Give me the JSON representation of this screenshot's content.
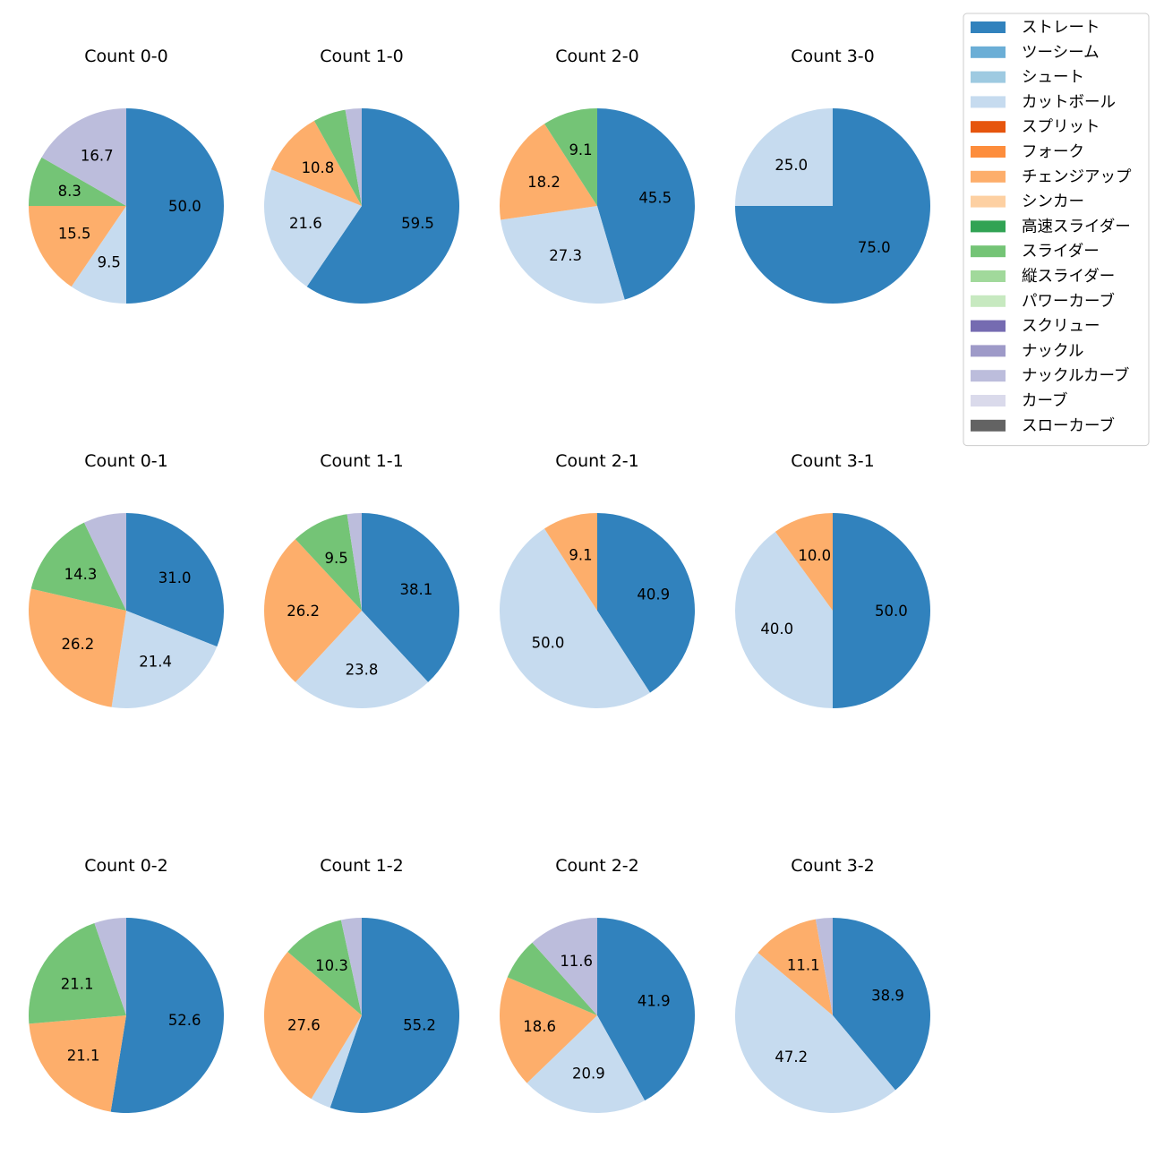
{
  "chart_data": {
    "type": "pie",
    "legend": {
      "placement": "top-right",
      "entries": [
        {
          "label": "ストレート",
          "color": "#3182bd"
        },
        {
          "label": "ツーシーム",
          "color": "#6baed6"
        },
        {
          "label": "シュート",
          "color": "#9ecae1"
        },
        {
          "label": "カットボール",
          "color": "#c6dbef"
        },
        {
          "label": "スプリット",
          "color": "#e6550d"
        },
        {
          "label": "フォーク",
          "color": "#fd8d3c"
        },
        {
          "label": "チェンジアップ",
          "color": "#fdae6b"
        },
        {
          "label": "シンカー",
          "color": "#fdd0a2"
        },
        {
          "label": "高速スライダー",
          "color": "#31a354"
        },
        {
          "label": "スライダー",
          "color": "#74c476"
        },
        {
          "label": "縦スライダー",
          "color": "#a1d99b"
        },
        {
          "label": "パワーカーブ",
          "color": "#c7e9c0"
        },
        {
          "label": "スクリュー",
          "color": "#756bb1"
        },
        {
          "label": "ナックル",
          "color": "#9e9ac8"
        },
        {
          "label": "ナックルカーブ",
          "color": "#bcbddc"
        },
        {
          "label": "カーブ",
          "color": "#dadaeb"
        },
        {
          "label": "スローカーブ",
          "color": "#636363"
        }
      ]
    },
    "label_threshold": 8,
    "pies": [
      {
        "title": "Count 0-0",
        "slices": [
          {
            "label": "ストレート",
            "value": 50.0
          },
          {
            "label": "カットボール",
            "value": 9.5
          },
          {
            "label": "チェンジアップ",
            "value": 15.5
          },
          {
            "label": "スライダー",
            "value": 8.3
          },
          {
            "label": "ナックルカーブ",
            "value": 16.7
          }
        ]
      },
      {
        "title": "Count 1-0",
        "slices": [
          {
            "label": "ストレート",
            "value": 59.5
          },
          {
            "label": "カットボール",
            "value": 21.6
          },
          {
            "label": "チェンジアップ",
            "value": 10.8
          },
          {
            "label": "スライダー",
            "value": 5.4
          },
          {
            "label": "ナックルカーブ",
            "value": 2.7
          }
        ]
      },
      {
        "title": "Count 2-0",
        "slices": [
          {
            "label": "ストレート",
            "value": 45.5
          },
          {
            "label": "カットボール",
            "value": 27.3
          },
          {
            "label": "チェンジアップ",
            "value": 18.2
          },
          {
            "label": "スライダー",
            "value": 9.1
          }
        ]
      },
      {
        "title": "Count 3-0",
        "slices": [
          {
            "label": "ストレート",
            "value": 75.0
          },
          {
            "label": "カットボール",
            "value": 25.0
          }
        ]
      },
      {
        "title": "Count 0-1",
        "slices": [
          {
            "label": "ストレート",
            "value": 31.0
          },
          {
            "label": "カットボール",
            "value": 21.4
          },
          {
            "label": "チェンジアップ",
            "value": 26.2
          },
          {
            "label": "スライダー",
            "value": 14.3
          },
          {
            "label": "ナックルカーブ",
            "value": 7.1
          }
        ]
      },
      {
        "title": "Count 1-1",
        "slices": [
          {
            "label": "ストレート",
            "value": 38.1
          },
          {
            "label": "カットボール",
            "value": 23.8
          },
          {
            "label": "チェンジアップ",
            "value": 26.2
          },
          {
            "label": "スライダー",
            "value": 9.5
          },
          {
            "label": "ナックルカーブ",
            "value": 2.4
          }
        ]
      },
      {
        "title": "Count 2-1",
        "slices": [
          {
            "label": "ストレート",
            "value": 40.9
          },
          {
            "label": "カットボール",
            "value": 50.0
          },
          {
            "label": "チェンジアップ",
            "value": 9.1
          }
        ]
      },
      {
        "title": "Count 3-1",
        "slices": [
          {
            "label": "ストレート",
            "value": 50.0
          },
          {
            "label": "カットボール",
            "value": 40.0
          },
          {
            "label": "チェンジアップ",
            "value": 10.0
          }
        ]
      },
      {
        "title": "Count 0-2",
        "slices": [
          {
            "label": "ストレート",
            "value": 52.6
          },
          {
            "label": "チェンジアップ",
            "value": 21.1
          },
          {
            "label": "スライダー",
            "value": 21.1
          },
          {
            "label": "ナックルカーブ",
            "value": 5.3
          }
        ]
      },
      {
        "title": "Count 1-2",
        "slices": [
          {
            "label": "ストレート",
            "value": 55.2
          },
          {
            "label": "カットボール",
            "value": 3.4
          },
          {
            "label": "チェンジアップ",
            "value": 27.6
          },
          {
            "label": "スライダー",
            "value": 10.3
          },
          {
            "label": "ナックルカーブ",
            "value": 3.4
          }
        ]
      },
      {
        "title": "Count 2-2",
        "slices": [
          {
            "label": "ストレート",
            "value": 41.9
          },
          {
            "label": "カットボール",
            "value": 20.9
          },
          {
            "label": "チェンジアップ",
            "value": 18.6
          },
          {
            "label": "スライダー",
            "value": 7.0
          },
          {
            "label": "ナックルカーブ",
            "value": 11.6
          }
        ]
      },
      {
        "title": "Count 3-2",
        "slices": [
          {
            "label": "ストレート",
            "value": 38.9
          },
          {
            "label": "カットボール",
            "value": 47.2
          },
          {
            "label": "チェンジアップ",
            "value": 11.1
          },
          {
            "label": "ナックルカーブ",
            "value": 2.8
          }
        ]
      }
    ]
  }
}
